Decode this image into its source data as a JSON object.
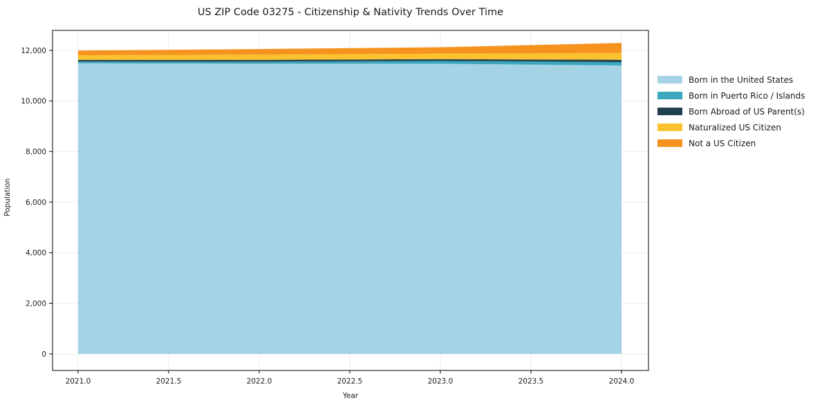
{
  "title": "US ZIP Code 03275 - Citizenship & Nativity Trends Over Time",
  "chart_data": {
    "type": "area",
    "stacked": true,
    "title": "US ZIP Code 03275 - Citizenship & Nativity Trends Over Time",
    "xlabel": "Year",
    "ylabel": "Population",
    "x": [
      2021,
      2022,
      2023,
      2024
    ],
    "series": [
      {
        "name": "Born in the United States",
        "color": "#a5d3e6",
        "values": [
          11490,
          11470,
          11470,
          11400
        ]
      },
      {
        "name": "Born in Puerto Rico / Islands",
        "color": "#3aa7bf",
        "values": [
          65,
          82,
          109,
          136
        ]
      },
      {
        "name": "Born Abroad of US Parent(s)",
        "color": "#20404f",
        "values": [
          70,
          71,
          73,
          90
        ]
      },
      {
        "name": "Naturalized US Citizen",
        "color": "#fcc22d",
        "values": [
          183,
          210,
          218,
          273
        ]
      },
      {
        "name": "Not a US Citizen",
        "color": "#f6921e",
        "values": [
          183,
          218,
          254,
          393
        ]
      }
    ],
    "x_ticks": [
      2021.0,
      2021.5,
      2022.0,
      2022.5,
      2023.0,
      2023.5,
      2024.0
    ],
    "x_tick_labels": [
      "2021.0",
      "2021.5",
      "2022.0",
      "2022.5",
      "2023.0",
      "2023.5",
      "2024.0"
    ],
    "y_ticks": [
      0,
      2000,
      4000,
      6000,
      8000,
      10000,
      12000
    ],
    "y_tick_labels": [
      "0",
      "2,000",
      "4,000",
      "6,000",
      "8,000",
      "10,000",
      "12,000"
    ],
    "xlim": [
      2020.859,
      2024.149
    ],
    "ylim": [
      -655,
      12791
    ],
    "grid": true,
    "legend_position": "right-outside"
  }
}
